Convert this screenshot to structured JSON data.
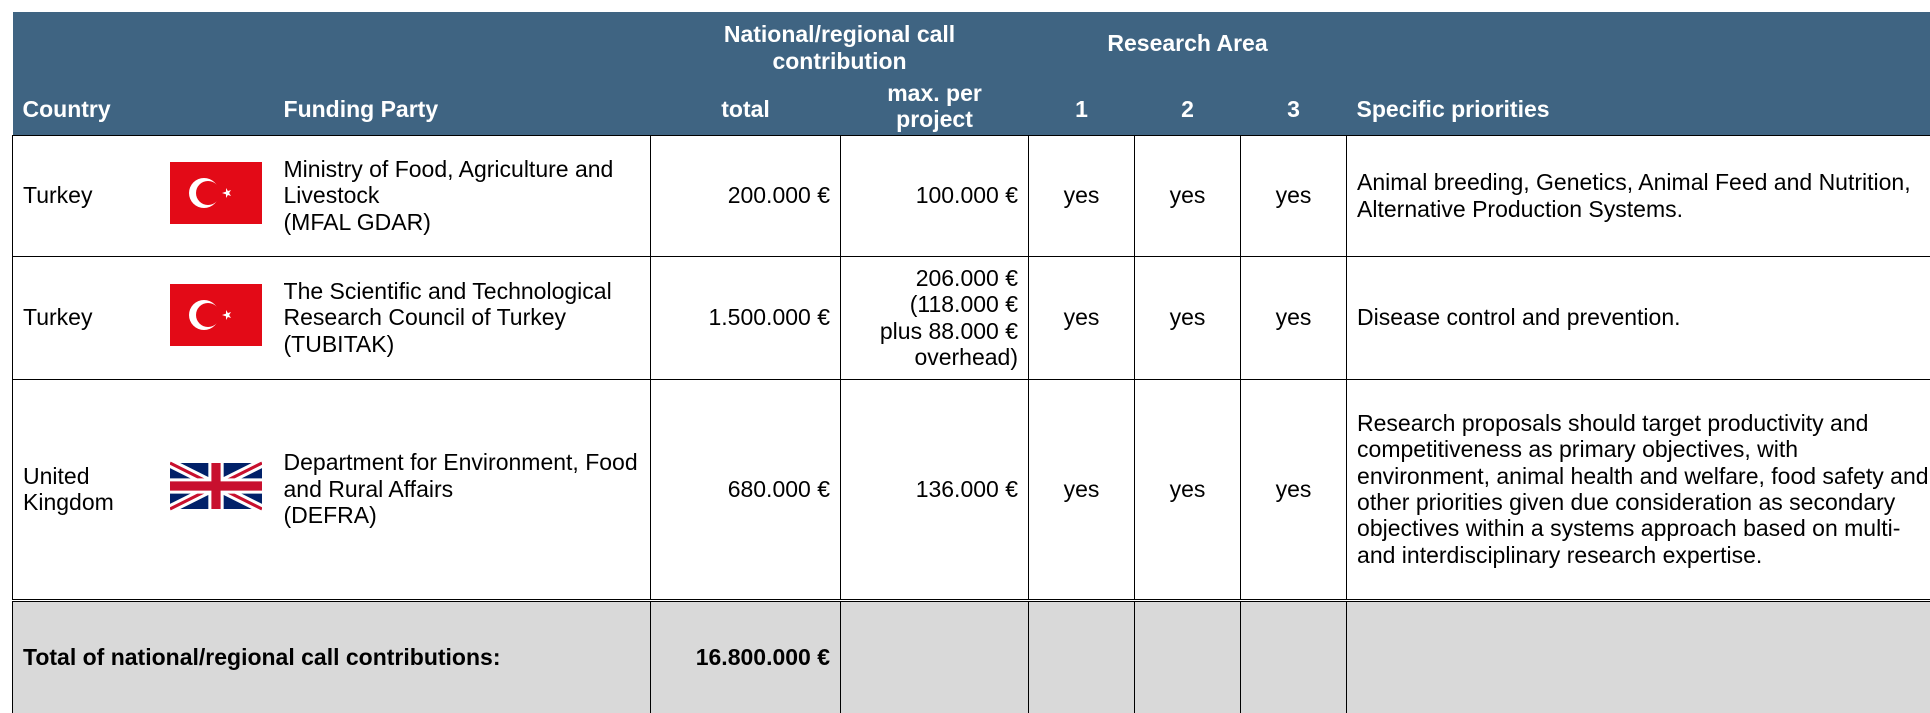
{
  "header": {
    "country": "Country",
    "funding_party": "Funding Party",
    "contribution": "National/regional call contribution",
    "total": "total",
    "max_per_project": "max. per project",
    "research_area": "Research Area",
    "area_1": "1",
    "area_2": "2",
    "area_3": "3",
    "specific_priorities": "Specific priorities"
  },
  "rows": [
    {
      "country": "Turkey",
      "funding_party": [
        "Ministry of Food, Agriculture and Livestock",
        "(MFAL GDAR)"
      ],
      "total": "200.000 €",
      "max_per_project": [
        "100.000 €"
      ],
      "area_1": "yes",
      "area_2": "yes",
      "area_3": "yes",
      "priorities": "Animal breeding, Genetics, Animal Feed and Nutrition, Alternative Production Systems."
    },
    {
      "country": "Turkey",
      "funding_party": [
        "The Scientific and Technological Research Council of Turkey",
        "(TUBITAK)"
      ],
      "total": "1.500.000 €",
      "max_per_project": [
        "206.000 €",
        "(118.000 €",
        "plus 88.000 €",
        "overhead)"
      ],
      "area_1": "yes",
      "area_2": "yes",
      "area_3": "yes",
      "priorities": "Disease control and prevention."
    },
    {
      "country": "United Kingdom",
      "funding_party": [
        "Department for Environment, Food and Rural Affairs",
        "(DEFRA)"
      ],
      "total": "680.000 €",
      "max_per_project": [
        "136.000 €"
      ],
      "area_1": "yes",
      "area_2": "yes",
      "area_3": "yes",
      "priorities": "Research proposals should target productivity and competitiveness as primary objectives, with environment, animal health and welfare, food safety and other priorities given due consideration as secondary objectives within a systems approach based on multi- and interdisciplinary research expertise."
    }
  ],
  "total_row": {
    "label": "Total of national/regional call contributions:",
    "value": "16.800.000 €"
  }
}
